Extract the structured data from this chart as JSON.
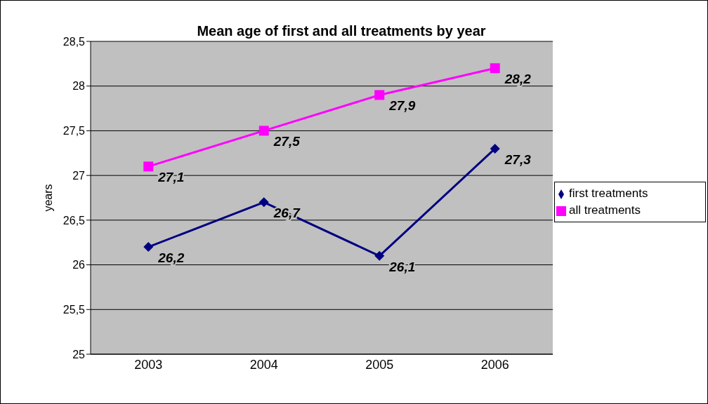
{
  "chart_data": {
    "type": "line",
    "title": "Mean age of first and all treatments by year",
    "ylabel": "years",
    "categories": [
      "2003",
      "2004",
      "2005",
      "2006"
    ],
    "series": [
      {
        "name": "first treatments",
        "color": "#000080",
        "marker": "diamond",
        "values": [
          26.2,
          26.7,
          26.1,
          27.3
        ],
        "value_labels": [
          "26,2",
          "26,7",
          "26,1",
          "27,3"
        ]
      },
      {
        "name": "all treatments",
        "color": "#ff00ff",
        "marker": "square",
        "values": [
          27.1,
          27.5,
          27.9,
          28.2
        ],
        "value_labels": [
          "27,1",
          "27,5",
          "27,9",
          "28,2"
        ]
      }
    ],
    "ylim": [
      25,
      28.5
    ],
    "yticks": [
      25,
      {
        "value": 25.5,
        "label": "25,5"
      },
      26,
      {
        "value": 26.5,
        "label": "26,5"
      },
      27,
      {
        "value": 27.5,
        "label": "27,5"
      },
      28,
      {
        "value": 28.5,
        "label": "28,5"
      }
    ],
    "grid": "y",
    "legend": "right"
  }
}
